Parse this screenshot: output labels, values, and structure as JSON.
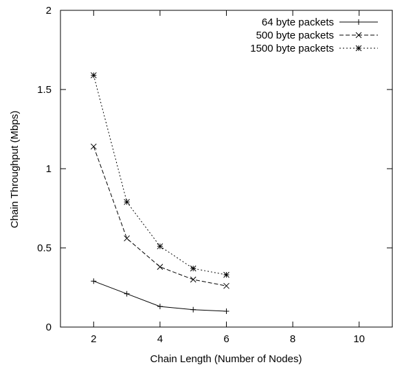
{
  "chart_data": {
    "type": "line",
    "title": "",
    "xlabel": "Chain Length (Number of Nodes)",
    "ylabel": "Chain Throughput (Mbps)",
    "xlim": [
      1,
      11
    ],
    "ylim": [
      0,
      2
    ],
    "x_ticks": [
      2,
      4,
      6,
      8,
      10
    ],
    "y_ticks": [
      0,
      0.5,
      1,
      1.5,
      2
    ],
    "x_tick_labels": [
      "2",
      "4",
      "6",
      "8",
      "10"
    ],
    "y_tick_labels": [
      "0",
      "0.5",
      "1",
      "1.5",
      "2"
    ],
    "grid": false,
    "legend_position": "top-right",
    "series": [
      {
        "name": "64 byte packets",
        "marker": "plus",
        "line_style": "solid",
        "x": [
          2,
          3,
          4,
          5,
          6
        ],
        "y": [
          0.29,
          0.21,
          0.13,
          0.11,
          0.1
        ]
      },
      {
        "name": "500 byte packets",
        "marker": "cross",
        "line_style": "dashed",
        "x": [
          2,
          3,
          4,
          5,
          6
        ],
        "y": [
          1.14,
          0.56,
          0.38,
          0.3,
          0.26
        ]
      },
      {
        "name": "1500 byte packets",
        "marker": "star",
        "line_style": "dotted",
        "x": [
          2,
          3,
          4,
          5,
          6
        ],
        "y": [
          1.59,
          0.79,
          0.51,
          0.37,
          0.33
        ]
      }
    ]
  }
}
